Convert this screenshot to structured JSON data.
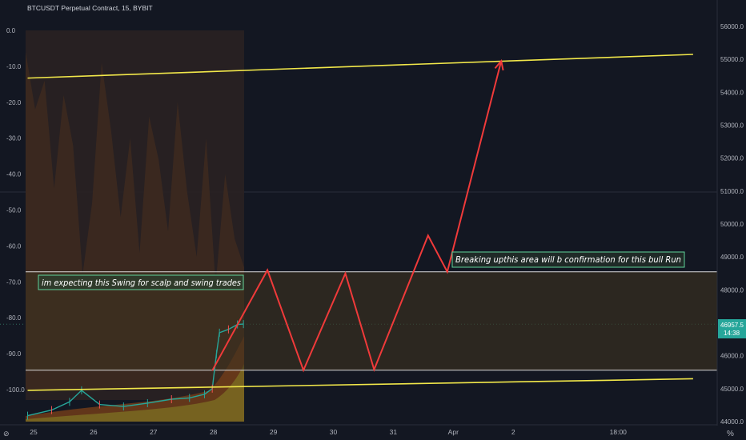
{
  "symbol_title": "BTCUSDT Perpetual Contract, 15, BYBIT",
  "colors": {
    "background": "#131722",
    "trendline": "#f2e84a",
    "zone_border": "#d9d9d9",
    "zone_fill": "#3d3220",
    "projection": "#f03a3a",
    "note_border": "#5fd39a",
    "price_tag": "#26a69a",
    "candle_up": "#26a69a",
    "candle_down": "#ef5350"
  },
  "annotations": {
    "swing_note": "im expecting this Swing for scalp and swing trades",
    "breakout_note": "Breaking upthis area will b confirmation for this bull Run"
  },
  "price_tag": {
    "price": "46957.5",
    "countdown": "14:38"
  },
  "scale_badges": {
    "right": "%",
    "left": "⊘"
  },
  "chart_data": {
    "type": "line",
    "title": "BTCUSDT Perpetual Contract, 15, BYBIT",
    "x_tick_labels": [
      "25",
      "26",
      "27",
      "28",
      "29",
      "30",
      "31",
      "Apr",
      "2",
      "18:00"
    ],
    "x_tick_days": [
      25,
      26,
      27,
      28,
      29,
      30,
      31,
      32,
      33,
      34.75
    ],
    "right_axis": {
      "ticks": [
        44000,
        45000,
        46000,
        47000,
        48000,
        49000,
        50000,
        51000,
        52000,
        53000,
        54000,
        55000,
        56000
      ],
      "range": [
        43950,
        56800
      ]
    },
    "left_axis": {
      "ticks": [
        0,
        -10,
        -20,
        -30,
        -40,
        -50,
        -60,
        -70,
        -80,
        -90,
        -100
      ],
      "range": [
        -105,
        2
      ]
    },
    "last_price": 46957.5,
    "resistance_zone": {
      "top": 48550,
      "bottom": 45560
    },
    "upper_channel_line": [
      {
        "day": 24.9,
        "price": 54430
      },
      {
        "day": 36.0,
        "price": 55150
      }
    ],
    "lower_channel_line": [
      {
        "day": 24.9,
        "price": 44950
      },
      {
        "day": 36.0,
        "price": 45300
      }
    ],
    "projection_path": [
      {
        "day": 27.98,
        "price": 45550
      },
      {
        "day": 28.9,
        "price": 48600
      },
      {
        "day": 29.5,
        "price": 45560
      },
      {
        "day": 30.2,
        "price": 48500
      },
      {
        "day": 30.68,
        "price": 45580
      },
      {
        "day": 31.58,
        "price": 49650
      },
      {
        "day": 31.9,
        "price": 48550
      },
      {
        "day": 32.8,
        "price": 54950
      }
    ],
    "price_path": [
      {
        "day": 24.9,
        "price": 44180
      },
      {
        "day": 25.3,
        "price": 44350
      },
      {
        "day": 25.6,
        "price": 44600
      },
      {
        "day": 25.8,
        "price": 44950
      },
      {
        "day": 26.1,
        "price": 44520
      },
      {
        "day": 26.5,
        "price": 44460
      },
      {
        "day": 26.9,
        "price": 44560
      },
      {
        "day": 27.3,
        "price": 44680
      },
      {
        "day": 27.6,
        "price": 44720
      },
      {
        "day": 27.85,
        "price": 44830
      },
      {
        "day": 27.98,
        "price": 45000
      },
      {
        "day": 28.05,
        "price": 46050
      },
      {
        "day": 28.1,
        "price": 46700
      },
      {
        "day": 28.25,
        "price": 46800
      },
      {
        "day": 28.4,
        "price": 46950
      },
      {
        "day": 28.5,
        "price": 46960
      }
    ],
    "oscillator": {
      "type": "area",
      "axis": "left",
      "values": [
        -6,
        -22,
        -14,
        -44,
        -18,
        -32,
        -68,
        -48,
        -9,
        -28,
        -52,
        -30,
        -62,
        -24,
        -36,
        -56,
        -20,
        -45,
        -63,
        -30,
        -71,
        -40,
        -58,
        -66
      ]
    }
  }
}
